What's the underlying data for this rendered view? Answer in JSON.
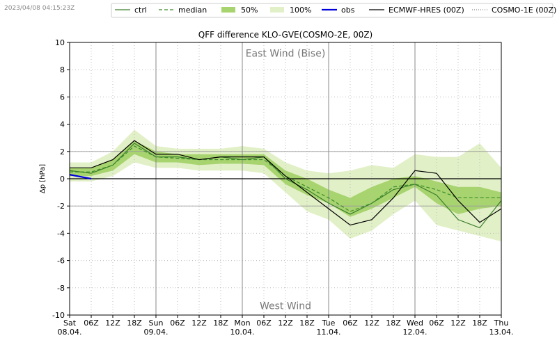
{
  "chart_data": {
    "type": "line",
    "timestamp": "2023/04/08 04:15:23Z",
    "title": "QFF difference KLO-GVE(COSMO-2E, 00Z)",
    "y_label": "Δp [hPa]",
    "annotations": [
      {
        "text": "East Wind (Bise)",
        "x": 60,
        "y": 9.2
      },
      {
        "text": "West Wind",
        "x": 60,
        "y": -9.3
      }
    ],
    "x": [
      0,
      6,
      12,
      18,
      24,
      30,
      36,
      42,
      48,
      54,
      60,
      66,
      72,
      78,
      84,
      90,
      96,
      102,
      108,
      114,
      120
    ],
    "xlim": [
      0,
      120
    ],
    "xticks": [
      {
        "value": 0,
        "label": "Sat\n08.04."
      },
      {
        "value": 6,
        "label": "06Z"
      },
      {
        "value": 12,
        "label": "12Z"
      },
      {
        "value": 18,
        "label": "18Z"
      },
      {
        "value": 24,
        "label": "Sun\n09.04."
      },
      {
        "value": 30,
        "label": "06Z"
      },
      {
        "value": 36,
        "label": "12Z"
      },
      {
        "value": 42,
        "label": "18Z"
      },
      {
        "value": 48,
        "label": "Mon\n10.04."
      },
      {
        "value": 54,
        "label": "06Z"
      },
      {
        "value": 60,
        "label": "12Z"
      },
      {
        "value": 66,
        "label": "18Z"
      },
      {
        "value": 72,
        "label": "Tue\n11.04."
      },
      {
        "value": 78,
        "label": "06Z"
      },
      {
        "value": 84,
        "label": "12Z"
      },
      {
        "value": 90,
        "label": "18Z"
      },
      {
        "value": 96,
        "label": "Wed\n12.04."
      },
      {
        "value": 102,
        "label": "06Z"
      },
      {
        "value": 108,
        "label": "12Z"
      },
      {
        "value": 114,
        "label": "18Z"
      },
      {
        "value": 120,
        "label": "Thu\n13.04."
      }
    ],
    "ylim": [
      -10,
      10
    ],
    "yticks": [
      -10,
      -8,
      -6,
      -4,
      -2,
      0,
      2,
      4,
      6,
      8,
      10
    ],
    "grid": true,
    "hlines": [
      {
        "value": 0,
        "color": "#000000"
      },
      {
        "value": 2,
        "color": "#999999"
      },
      {
        "value": -2,
        "color": "#999999"
      }
    ],
    "series": [
      {
        "name": "ctrl",
        "style": "solid",
        "color": "#3a7d2a",
        "values": [
          0.6,
          0.4,
          1.0,
          2.6,
          1.6,
          1.6,
          1.4,
          1.6,
          1.4,
          1.6,
          0.0,
          -0.8,
          -1.8,
          -2.6,
          -1.8,
          -0.8,
          -0.4,
          -1.2,
          -3.0,
          -3.6,
          -1.6
        ]
      },
      {
        "name": "median",
        "style": "dashed",
        "color": "#3a8a2a",
        "values": [
          0.5,
          0.5,
          1.0,
          2.4,
          1.6,
          1.5,
          1.4,
          1.4,
          1.4,
          1.4,
          0.2,
          -0.6,
          -1.4,
          -2.4,
          -1.8,
          -0.6,
          -0.4,
          -0.8,
          -1.4,
          -1.4,
          -1.4
        ]
      },
      {
        "name": "50%",
        "style": "band",
        "color": "#a8d46f",
        "values_low": [
          0.2,
          0.2,
          0.6,
          1.8,
          1.2,
          1.2,
          1.0,
          1.1,
          1.1,
          1.0,
          -0.4,
          -1.2,
          -1.8,
          -2.8,
          -2.2,
          -1.4,
          -0.6,
          -1.8,
          -2.6,
          -2.2,
          -2.0
        ],
        "values_high": [
          0.8,
          0.8,
          1.4,
          2.8,
          2.0,
          1.8,
          1.8,
          1.8,
          1.8,
          1.8,
          0.6,
          0.0,
          -0.8,
          -1.4,
          -0.6,
          0.0,
          0.2,
          -0.2,
          -0.6,
          -0.6,
          -1.0
        ]
      },
      {
        "name": "100%",
        "style": "band",
        "color": "#e2f0c8",
        "values_low": [
          -0.2,
          -0.2,
          0.2,
          1.2,
          0.8,
          0.8,
          0.6,
          0.6,
          0.6,
          0.4,
          -1.0,
          -2.4,
          -3.0,
          -4.4,
          -3.8,
          -2.6,
          -1.6,
          -3.4,
          -3.8,
          -4.2,
          -4.6
        ],
        "values_high": [
          1.2,
          1.2,
          2.0,
          3.6,
          2.4,
          2.2,
          2.2,
          2.2,
          2.4,
          2.2,
          1.2,
          0.6,
          0.4,
          0.6,
          1.0,
          0.8,
          1.8,
          1.6,
          1.6,
          2.6,
          0.8
        ]
      },
      {
        "name": "obs",
        "style": "solid",
        "color": "#0000dd",
        "values": [
          0.3,
          0.0,
          null,
          null,
          null,
          null,
          null,
          null,
          null,
          null,
          null,
          null,
          null,
          null,
          null,
          null,
          null,
          null,
          null,
          null,
          null
        ]
      },
      {
        "name": "ECMWF-HRES (00Z)",
        "style": "solid",
        "color": "#000000",
        "values": [
          0.8,
          0.8,
          1.4,
          2.8,
          1.8,
          1.8,
          1.4,
          1.6,
          1.6,
          1.6,
          0.2,
          -1.0,
          -2.2,
          -3.4,
          -3.0,
          -1.4,
          0.6,
          0.4,
          -1.6,
          -3.2,
          -2.2
        ]
      },
      {
        "name": "COSMO-1E (00Z)",
        "style": "dotted",
        "color": "#888888",
        "values": [
          null,
          null,
          null,
          null,
          null,
          null,
          null,
          null,
          null,
          null,
          null,
          null,
          null,
          null,
          null,
          null,
          null,
          null,
          null,
          null,
          null
        ]
      }
    ]
  }
}
